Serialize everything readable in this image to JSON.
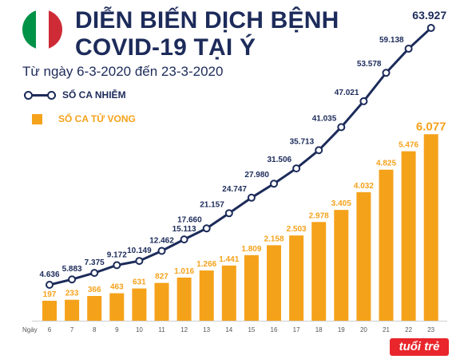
{
  "header": {
    "title_line1": "DIỄN BIẾN DỊCH BỆNH",
    "title_line2": "COVID-19 TẠI Ý",
    "subtitle": "Từ ngày 6-3-2020 đến 23-3-2020",
    "flag_colors": [
      "#009246",
      "#ffffff",
      "#ce2b37"
    ]
  },
  "legend": {
    "cases": "SỐ CA NHIỄM",
    "deaths": "SỐ CA TỬ VONG"
  },
  "colors": {
    "cases_line": "#1c2b5a",
    "deaths_bar": "#f5a21b"
  },
  "logo": {
    "text": "tuổi trẻ"
  },
  "chart_data": {
    "type": "bar",
    "xlabel": "Ngày",
    "categories": [
      "6",
      "7",
      "8",
      "9",
      "10",
      "11",
      "12",
      "13",
      "14",
      "15",
      "16",
      "17",
      "18",
      "19",
      "20",
      "21",
      "22",
      "23"
    ],
    "series": [
      {
        "name": "SỐ CA NHIỄM",
        "type": "line",
        "values": [
          4636,
          5883,
          7375,
          9172,
          10149,
          12462,
          15113,
          17660,
          21157,
          24747,
          27980,
          31506,
          35713,
          41035,
          47021,
          53578,
          59138,
          63927
        ],
        "labels": [
          "4.636",
          "5.883",
          "7.375",
          "9.172",
          "10.149",
          "12.462",
          "15.113",
          "17.660",
          "21.157",
          "24.747",
          "27.980",
          "31.506",
          "35.713",
          "41.035",
          "47.021",
          "53.578",
          "59.138",
          "63.927"
        ]
      },
      {
        "name": "SỐ CA TỬ VONG",
        "type": "bar",
        "values": [
          197,
          233,
          366,
          463,
          631,
          827,
          1016,
          1266,
          1441,
          1809,
          2158,
          2503,
          2978,
          3405,
          4032,
          4825,
          5476,
          6077
        ],
        "labels": [
          "197",
          "233",
          "366",
          "463",
          "631",
          "827",
          "1.016",
          "1.266",
          "1.441",
          "1.809",
          "2.158",
          "2.503",
          "2.978",
          "3.405",
          "4.032",
          "4.825",
          "5.476",
          "6.077"
        ]
      }
    ]
  }
}
